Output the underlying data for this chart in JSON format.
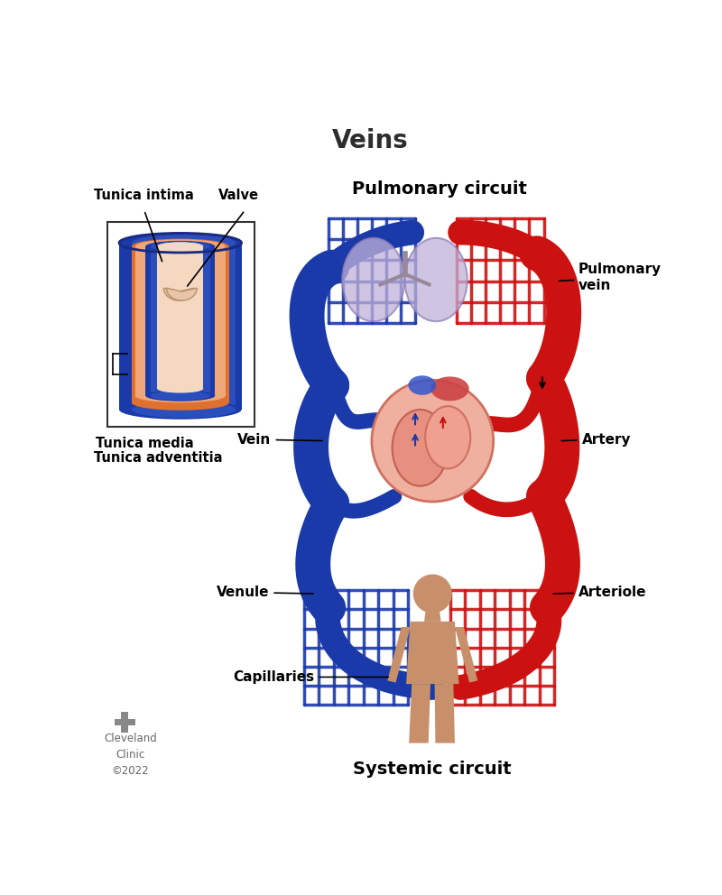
{
  "title": "Veins",
  "title_fontsize": 20,
  "title_color": "#2d2d2d",
  "background_color": "#ffffff",
  "blue_color": "#1a3aaa",
  "red_color": "#cc1111",
  "orange_color": "#e07030",
  "orange_light": "#f0a878",
  "skin_color": "#c8906a",
  "lung_color": "#c0b0d8",
  "lung_edge": "#9080b8",
  "pulmonary_circuit_label": "Pulmonary circuit",
  "systemic_circuit_label": "Systemic circuit",
  "cleveland_text": "Cleveland\nClinic\n©2022",
  "label_fontsize": 11,
  "circuit_label_fontsize": 14
}
